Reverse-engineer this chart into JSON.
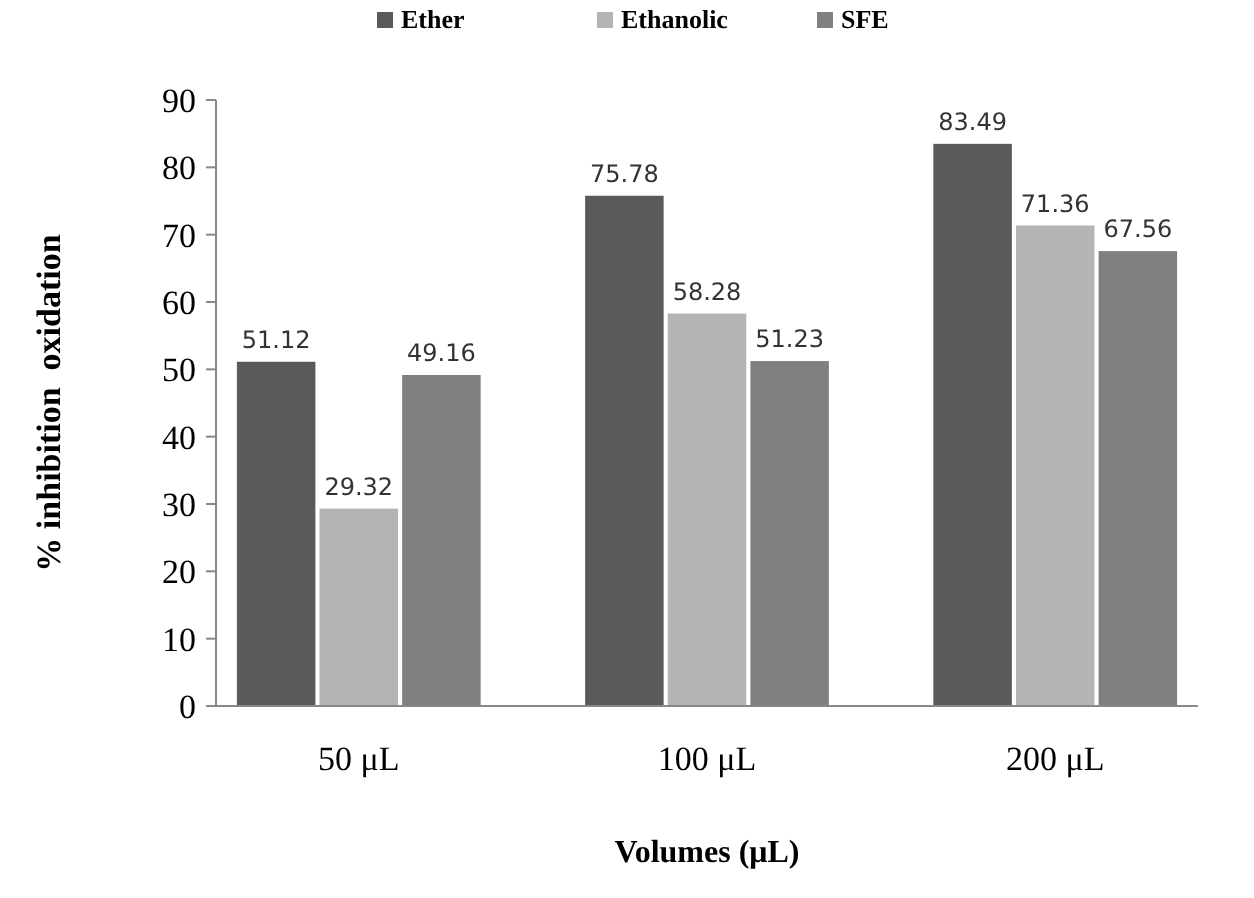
{
  "chart_data": {
    "type": "bar",
    "xlabel": "Volumes (μL)",
    "ylabel": "% inhibition  oxidation",
    "categories": [
      "50 μL",
      "100 μL",
      "200 μL"
    ],
    "series": [
      {
        "name": "Ether",
        "color": "#5a5a5a",
        "values": [
          51.12,
          75.78,
          83.49
        ]
      },
      {
        "name": "Ethanolic",
        "color": "#b4b4b4",
        "values": [
          29.32,
          58.28,
          71.36
        ]
      },
      {
        "name": "SFE",
        "color": "#808080",
        "values": [
          49.16,
          51.23,
          67.56
        ]
      }
    ],
    "ylim": [
      0,
      90
    ],
    "yticks": [
      0,
      10,
      20,
      30,
      40,
      50,
      60,
      70,
      80,
      90
    ],
    "data_labels": true,
    "legend": "top",
    "grid": false
  }
}
